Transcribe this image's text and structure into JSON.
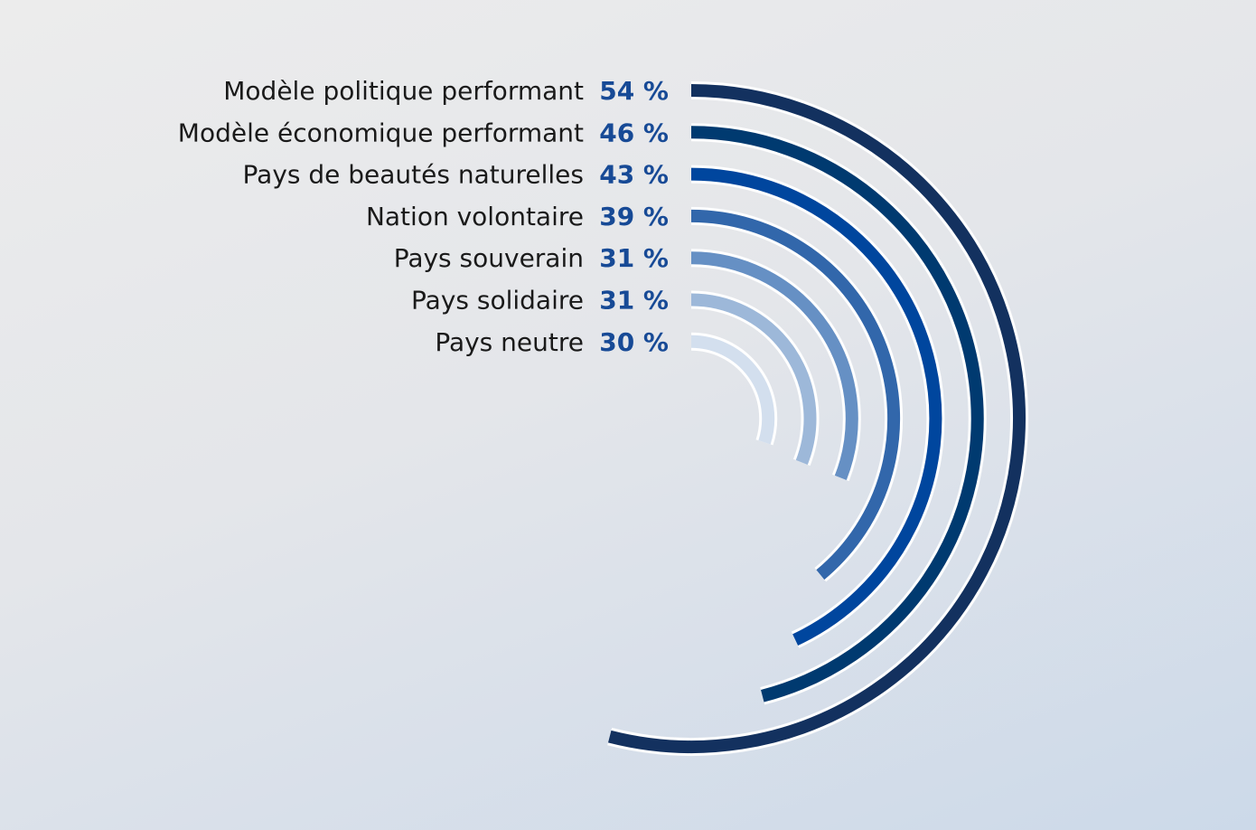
{
  "chart_data": {
    "type": "radial-bar",
    "categories": [
      "Modèle politique performant",
      "Modèle économique performant",
      "Pays de beautés naturelles",
      "Nation volontaire",
      "Pays souverain",
      "Pays solidaire",
      "Pays neutre"
    ],
    "values": [
      54,
      46,
      43,
      39,
      31,
      31,
      30
    ],
    "value_labels": [
      "54 %",
      "46 %",
      "43 %",
      "39 %",
      "31 %",
      "31 %",
      "30 %"
    ],
    "unit": "%",
    "colors": [
      "#13315f",
      "#003a70",
      "#00469e",
      "#3267ab",
      "#6690c4",
      "#9db8d9",
      "#d3dfee"
    ],
    "title": "",
    "legend": "none",
    "grid": false
  }
}
